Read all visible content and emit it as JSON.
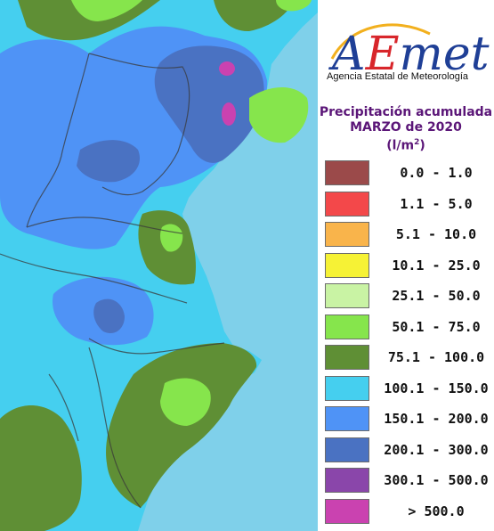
{
  "header": {
    "logo_text": "AEmet",
    "agency": "Agencia Estatal de Meteorología"
  },
  "title": {
    "line1": "Precipitación acumulada",
    "line2": "MARZO de 2020",
    "unit": "(l/m",
    "unit_sup": "2",
    "unit_close": ")"
  },
  "legend": [
    {
      "range": "0.0 - 1.0",
      "color": "#9b4a4a"
    },
    {
      "range": "1.1 - 5.0",
      "color": "#f3484a"
    },
    {
      "range": "5.1 - 10.0",
      "color": "#f9b44b"
    },
    {
      "range": "10.1 - 25.0",
      "color": "#f6f235"
    },
    {
      "range": "25.1 - 50.0",
      "color": "#c9f3a4"
    },
    {
      "range": "50.1 - 75.0",
      "color": "#86e54c"
    },
    {
      "range": "75.1 - 100.0",
      "color": "#5f8f35"
    },
    {
      "range": "100.1 - 150.0",
      "color": "#45cfef"
    },
    {
      "range": "150.1 - 200.0",
      "color": "#4f93f6"
    },
    {
      "range": "200.1 - 300.0",
      "color": "#4a72c2"
    },
    {
      "range": "300.1 - 500.0",
      "color": "#8a46aa"
    },
    {
      "range": "> 500.0",
      "color": "#ca42b0"
    }
  ],
  "map": {
    "sea_color": "#7fd0ea",
    "land_base_color": "#45cfef"
  }
}
